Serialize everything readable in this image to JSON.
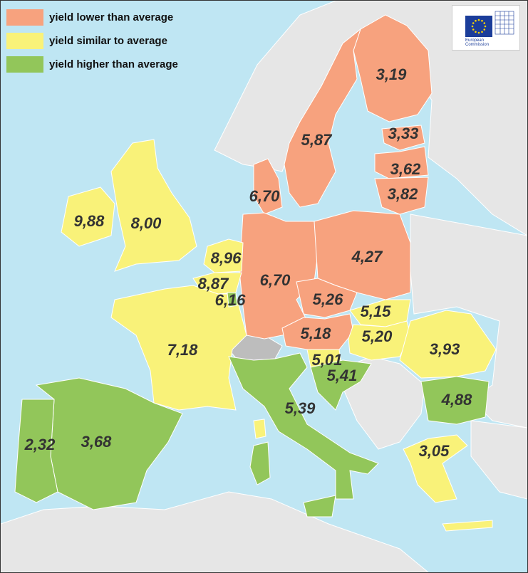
{
  "legend": [
    {
      "label": "yield lower than average",
      "color": "#f7a27e"
    },
    {
      "label": "yield similar to average",
      "color": "#f9f279"
    },
    {
      "label": "yield higher than average",
      "color": "#92c65a"
    }
  ],
  "colors": {
    "sea": "#bfe6f3",
    "non_member": "#e6e6e6",
    "alps": "#bdbdbd",
    "border": "#ffffff",
    "label_text": "#333333"
  },
  "logo": {
    "line1": "European",
    "line2": "Commission"
  },
  "values": [
    {
      "id": "finland",
      "text": "3,19",
      "category": "lower"
    },
    {
      "id": "sweden",
      "text": "5,87",
      "category": "lower"
    },
    {
      "id": "estonia",
      "text": "3,33",
      "category": "lower"
    },
    {
      "id": "latvia",
      "text": "3,62",
      "category": "lower"
    },
    {
      "id": "lithuania",
      "text": "3,82",
      "category": "lower"
    },
    {
      "id": "denmark",
      "text": "6,70",
      "category": "lower"
    },
    {
      "id": "ireland",
      "text": "9,88",
      "category": "similar"
    },
    {
      "id": "united-kingdom",
      "text": "8,00",
      "category": "similar"
    },
    {
      "id": "netherlands",
      "text": "8,96",
      "category": "similar"
    },
    {
      "id": "belgium",
      "text": "8,87",
      "category": "similar"
    },
    {
      "id": "luxembourg",
      "text": "6,16",
      "category": "higher"
    },
    {
      "id": "germany",
      "text": "6,70",
      "category": "lower"
    },
    {
      "id": "poland",
      "text": "4,27",
      "category": "lower"
    },
    {
      "id": "czechia",
      "text": "5,26",
      "category": "lower"
    },
    {
      "id": "slovakia",
      "text": "5,15",
      "category": "similar"
    },
    {
      "id": "austria",
      "text": "5,18",
      "category": "lower"
    },
    {
      "id": "hungary",
      "text": "5,20",
      "category": "similar"
    },
    {
      "id": "slovenia",
      "text": "5,01",
      "category": "similar"
    },
    {
      "id": "croatia",
      "text": "5,41",
      "category": "higher"
    },
    {
      "id": "romania",
      "text": "3,93",
      "category": "similar"
    },
    {
      "id": "bulgaria",
      "text": "4,88",
      "category": "higher"
    },
    {
      "id": "france",
      "text": "7,18",
      "category": "similar"
    },
    {
      "id": "italy",
      "text": "5,39",
      "category": "higher"
    },
    {
      "id": "portugal",
      "text": "2,32",
      "category": "higher"
    },
    {
      "id": "spain",
      "text": "3,68",
      "category": "higher"
    },
    {
      "id": "greece",
      "text": "3,05",
      "category": "similar"
    }
  ]
}
